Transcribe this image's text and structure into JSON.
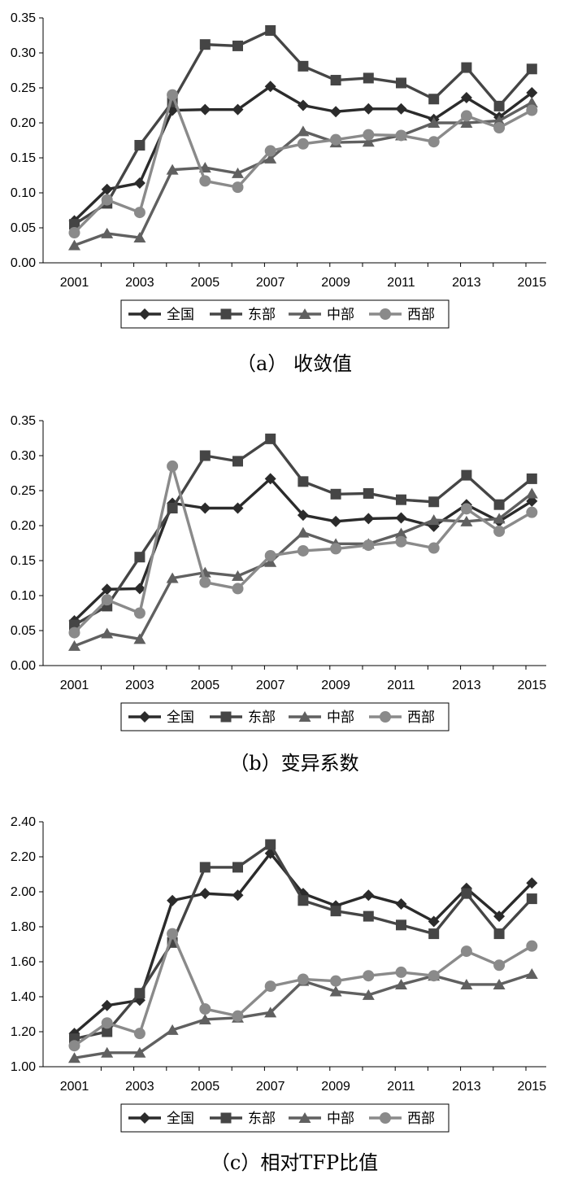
{
  "chart_data": [
    {
      "type": "line",
      "caption": "（a） 收敛值",
      "x": [
        "2001",
        "2002",
        "2003",
        "2004",
        "2005",
        "2006",
        "2007",
        "2008",
        "2009",
        "2010",
        "2011",
        "2012",
        "2013",
        "2014",
        "2015"
      ],
      "xticks": [
        "2001",
        "2003",
        "2005",
        "2007",
        "2009",
        "2011",
        "2013",
        "2015"
      ],
      "yticks": [
        "0.00",
        "0.05",
        "0.10",
        "0.15",
        "0.20",
        "0.25",
        "0.30",
        "0.35"
      ],
      "ylim": [
        0,
        0.35
      ],
      "series": [
        {
          "name": "全国",
          "marker": "diamond",
          "color": "#2b2b2b",
          "values": [
            0.06,
            0.105,
            0.114,
            0.218,
            0.219,
            0.219,
            0.252,
            0.225,
            0.216,
            0.22,
            0.22,
            0.205,
            0.236,
            0.208,
            0.243
          ]
        },
        {
          "name": "东部",
          "marker": "square",
          "color": "#454545",
          "values": [
            0.055,
            0.085,
            0.168,
            0.23,
            0.312,
            0.31,
            0.332,
            0.281,
            0.261,
            0.264,
            0.257,
            0.234,
            0.279,
            0.224,
            0.277
          ]
        },
        {
          "name": "中部",
          "marker": "triangle",
          "color": "#606060",
          "values": [
            0.025,
            0.042,
            0.036,
            0.133,
            0.136,
            0.128,
            0.149,
            0.188,
            0.172,
            0.173,
            0.182,
            0.2,
            0.2,
            0.203,
            0.229
          ]
        },
        {
          "name": "西部",
          "marker": "circle",
          "color": "#8a8a8a",
          "values": [
            0.043,
            0.09,
            0.072,
            0.24,
            0.117,
            0.108,
            0.16,
            0.17,
            0.176,
            0.183,
            0.182,
            0.173,
            0.21,
            0.193,
            0.218
          ]
        }
      ]
    },
    {
      "type": "line",
      "caption": "（b）变异系数",
      "x": [
        "2001",
        "2002",
        "2003",
        "2004",
        "2005",
        "2006",
        "2007",
        "2008",
        "2009",
        "2010",
        "2011",
        "2012",
        "2013",
        "2014",
        "2015"
      ],
      "xticks": [
        "2001",
        "2003",
        "2005",
        "2007",
        "2009",
        "2011",
        "2013",
        "2015"
      ],
      "yticks": [
        "0.00",
        "0.05",
        "0.10",
        "0.15",
        "0.20",
        "0.25",
        "0.30",
        "0.35"
      ],
      "ylim": [
        0,
        0.35
      ],
      "series": [
        {
          "name": "全国",
          "marker": "diamond",
          "color": "#2b2b2b",
          "values": [
            0.064,
            0.109,
            0.11,
            0.232,
            0.225,
            0.225,
            0.267,
            0.215,
            0.206,
            0.21,
            0.211,
            0.199,
            0.23,
            0.206,
            0.235
          ]
        },
        {
          "name": "东部",
          "marker": "square",
          "color": "#454545",
          "values": [
            0.058,
            0.085,
            0.155,
            0.225,
            0.3,
            0.292,
            0.324,
            0.263,
            0.245,
            0.246,
            0.237,
            0.234,
            0.272,
            0.23,
            0.267
          ]
        },
        {
          "name": "中部",
          "marker": "triangle",
          "color": "#606060",
          "values": [
            0.028,
            0.046,
            0.038,
            0.125,
            0.133,
            0.128,
            0.148,
            0.19,
            0.174,
            0.174,
            0.189,
            0.208,
            0.206,
            0.21,
            0.246
          ]
        },
        {
          "name": "西部",
          "marker": "circle",
          "color": "#8a8a8a",
          "values": [
            0.047,
            0.094,
            0.075,
            0.285,
            0.119,
            0.11,
            0.157,
            0.164,
            0.167,
            0.172,
            0.177,
            0.168,
            0.224,
            0.192,
            0.219
          ]
        }
      ]
    },
    {
      "type": "line",
      "caption": "（c）相对TFP比值",
      "x": [
        "2001",
        "2002",
        "2003",
        "2004",
        "2005",
        "2006",
        "2007",
        "2008",
        "2009",
        "2010",
        "2011",
        "2012",
        "2013",
        "2014",
        "2015"
      ],
      "xticks": [
        "2001",
        "2003",
        "2005",
        "2007",
        "2009",
        "2011",
        "2013",
        "2015"
      ],
      "yticks": [
        "1.00",
        "1.20",
        "1.40",
        "1.60",
        "1.80",
        "2.00",
        "2.20",
        "2.40"
      ],
      "ylim": [
        1.0,
        2.4
      ],
      "series": [
        {
          "name": "全国",
          "marker": "diamond",
          "color": "#2b2b2b",
          "values": [
            1.19,
            1.35,
            1.38,
            1.95,
            1.99,
            1.98,
            2.22,
            1.99,
            1.92,
            1.98,
            1.93,
            1.83,
            2.02,
            1.86,
            2.05
          ]
        },
        {
          "name": "东部",
          "marker": "square",
          "color": "#454545",
          "values": [
            1.16,
            1.2,
            1.42,
            1.71,
            2.14,
            2.14,
            2.27,
            1.95,
            1.89,
            1.86,
            1.81,
            1.76,
            1.99,
            1.76,
            1.96
          ]
        },
        {
          "name": "中部",
          "marker": "triangle",
          "color": "#606060",
          "values": [
            1.05,
            1.08,
            1.08,
            1.21,
            1.27,
            1.28,
            1.31,
            1.49,
            1.43,
            1.41,
            1.47,
            1.52,
            1.47,
            1.47,
            1.53
          ]
        },
        {
          "name": "西部",
          "marker": "circle",
          "color": "#8a8a8a",
          "values": [
            1.12,
            1.25,
            1.19,
            1.76,
            1.33,
            1.29,
            1.46,
            1.5,
            1.49,
            1.52,
            1.54,
            1.52,
            1.66,
            1.58,
            1.69
          ]
        }
      ]
    }
  ]
}
